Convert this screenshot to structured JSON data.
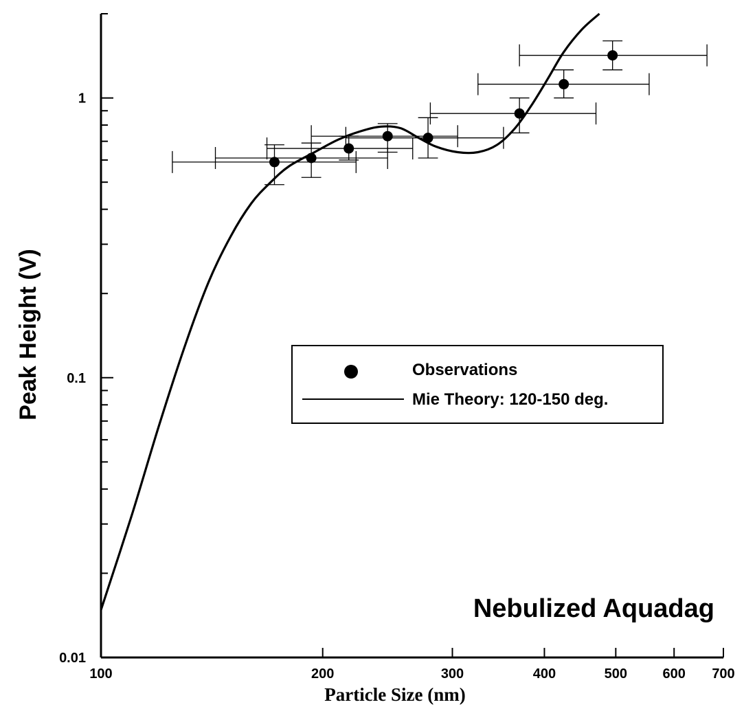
{
  "chart_data": {
    "type": "scatter",
    "title": "",
    "xlabel": "Particle Size (nm)",
    "ylabel": "Peak Height (V)",
    "xscale": "log",
    "yscale": "log",
    "xlim": [
      100,
      700
    ],
    "ylim": [
      0.01,
      2
    ],
    "xticks": [
      {
        "value": 100,
        "label": "100"
      },
      {
        "value": 200,
        "label": "200"
      },
      {
        "value": 300,
        "label": "300"
      },
      {
        "value": 400,
        "label": "400"
      },
      {
        "value": 500,
        "label": "500"
      },
      {
        "value": 600,
        "label": "600"
      },
      {
        "value": 700,
        "label": "700"
      }
    ],
    "yticks": [
      {
        "value": 0.01,
        "label": "0.01"
      },
      {
        "value": 0.1,
        "label": "0.1"
      },
      {
        "value": 1,
        "label": "1"
      }
    ],
    "annotation": "Nebulized Aquadag",
    "legend_position": "center",
    "grid": false,
    "series": [
      {
        "name": "Observations",
        "kind": "points-with-errorbars",
        "points": [
          {
            "x": 172,
            "y": 0.59,
            "xerr": [
              125,
              222
            ],
            "yerr": [
              0.49,
              0.68
            ]
          },
          {
            "x": 193,
            "y": 0.61,
            "xerr": [
              143,
              245
            ],
            "yerr": [
              0.52,
              0.69
            ]
          },
          {
            "x": 217,
            "y": 0.66,
            "xerr": [
              168,
              265
            ],
            "yerr": [
              0.6,
              0.73
            ]
          },
          {
            "x": 245,
            "y": 0.73,
            "xerr": [
              193,
              305
            ],
            "yerr": [
              0.64,
              0.81
            ]
          },
          {
            "x": 278,
            "y": 0.72,
            "xerr": [
              215,
              352
            ],
            "yerr": [
              0.61,
              0.85
            ]
          },
          {
            "x": 370,
            "y": 0.88,
            "xerr": [
              280,
              470
            ],
            "yerr": [
              0.75,
              1.0
            ]
          },
          {
            "x": 425,
            "y": 1.12,
            "xerr": [
              325,
              555
            ],
            "yerr": [
              1.0,
              1.26
            ]
          },
          {
            "x": 495,
            "y": 1.42,
            "xerr": [
              370,
              665
            ],
            "yerr": [
              1.26,
              1.6
            ]
          }
        ]
      },
      {
        "name": "Mie Theory: 120-150 deg.",
        "kind": "line",
        "points": [
          {
            "x": 100,
            "y": 0.0148
          },
          {
            "x": 110,
            "y": 0.032
          },
          {
            "x": 120,
            "y": 0.068
          },
          {
            "x": 130,
            "y": 0.13
          },
          {
            "x": 140,
            "y": 0.22
          },
          {
            "x": 150,
            "y": 0.32
          },
          {
            "x": 160,
            "y": 0.42
          },
          {
            "x": 170,
            "y": 0.5
          },
          {
            "x": 180,
            "y": 0.57
          },
          {
            "x": 195,
            "y": 0.64
          },
          {
            "x": 210,
            "y": 0.71
          },
          {
            "x": 225,
            "y": 0.76
          },
          {
            "x": 240,
            "y": 0.79
          },
          {
            "x": 255,
            "y": 0.78
          },
          {
            "x": 270,
            "y": 0.72
          },
          {
            "x": 285,
            "y": 0.67
          },
          {
            "x": 305,
            "y": 0.64
          },
          {
            "x": 325,
            "y": 0.64
          },
          {
            "x": 345,
            "y": 0.68
          },
          {
            "x": 365,
            "y": 0.78
          },
          {
            "x": 385,
            "y": 0.95
          },
          {
            "x": 405,
            "y": 1.18
          },
          {
            "x": 425,
            "y": 1.46
          },
          {
            "x": 450,
            "y": 1.76
          },
          {
            "x": 475,
            "y": 2.0
          }
        ]
      }
    ]
  }
}
